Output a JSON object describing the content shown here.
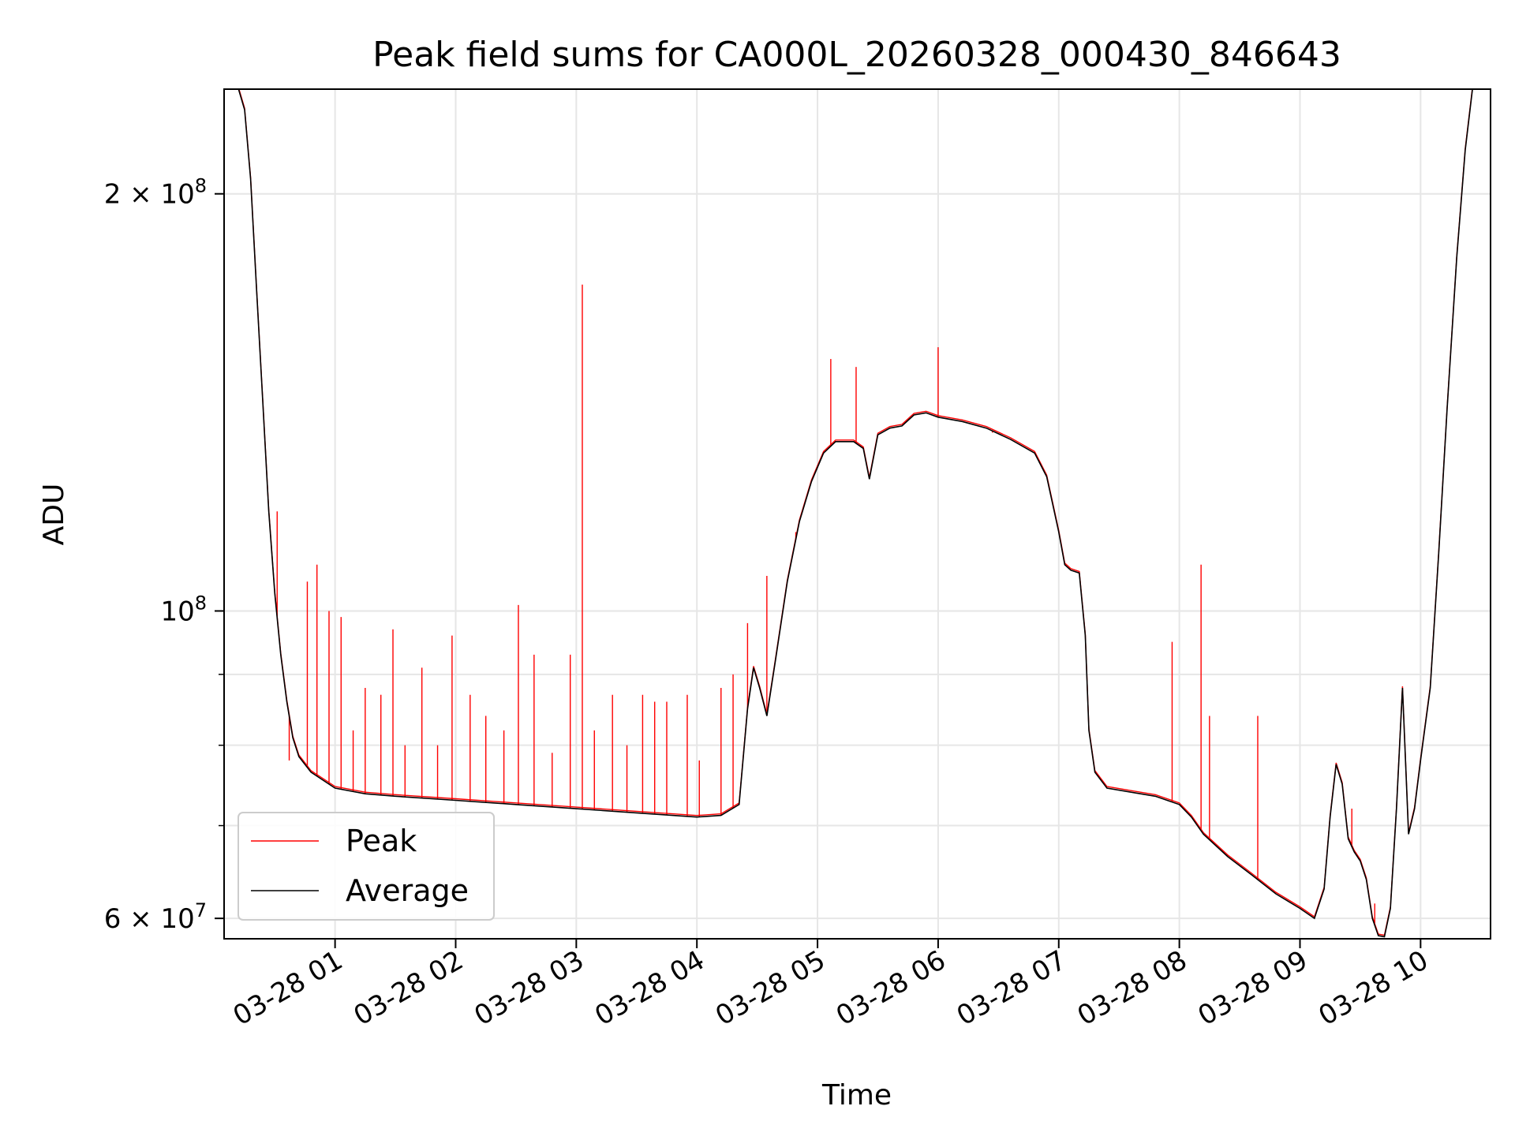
{
  "chart_data": {
    "type": "line",
    "title": "Peak field sums for CA000L_20260328_000430_846643",
    "xlabel": "Time",
    "ylabel": "ADU",
    "yscale": "log",
    "ylim": [
      58000000,
      238000000
    ],
    "xlim_hours": [
      0.08,
      10.58
    ],
    "x_unit": "hours since 03-28 00:00",
    "grid": true,
    "legend_location": "lower-left",
    "x_ticks": [
      {
        "value": 1,
        "label": "03-28 01"
      },
      {
        "value": 2,
        "label": "03-28 02"
      },
      {
        "value": 3,
        "label": "03-28 03"
      },
      {
        "value": 4,
        "label": "03-28 04"
      },
      {
        "value": 5,
        "label": "03-28 05"
      },
      {
        "value": 6,
        "label": "03-28 06"
      },
      {
        "value": 7,
        "label": "03-28 07"
      },
      {
        "value": 8,
        "label": "03-28 08"
      },
      {
        "value": 9,
        "label": "03-28 09"
      },
      {
        "value": 10,
        "label": "03-28 10"
      }
    ],
    "y_major_ticks": [
      {
        "value": 60000000,
        "mantissa": "6",
        "base": "10",
        "exp": "7"
      },
      {
        "value": 100000000,
        "mantissa": "",
        "base": "10",
        "exp": "8"
      },
      {
        "value": 200000000,
        "mantissa": "2",
        "base": "10",
        "exp": "8"
      }
    ],
    "y_minor_gridlines": [
      70000000,
      80000000,
      90000000
    ],
    "series": [
      {
        "name": "Average",
        "color": "#000000",
        "points": [
          [
            0.08,
            238000000
          ],
          [
            0.2,
            238000000
          ],
          [
            0.25,
            230000000
          ],
          [
            0.3,
            205000000
          ],
          [
            0.35,
            170000000
          ],
          [
            0.4,
            142000000
          ],
          [
            0.45,
            118000000
          ],
          [
            0.5,
            103000000
          ],
          [
            0.55,
            93000000
          ],
          [
            0.6,
            86000000
          ],
          [
            0.65,
            81000000
          ],
          [
            0.7,
            78500000
          ],
          [
            0.8,
            76500000
          ],
          [
            1.0,
            74500000
          ],
          [
            1.25,
            73800000
          ],
          [
            1.5,
            73500000
          ],
          [
            2.0,
            73000000
          ],
          [
            2.5,
            72500000
          ],
          [
            3.0,
            72000000
          ],
          [
            3.5,
            71500000
          ],
          [
            4.0,
            71000000
          ],
          [
            4.2,
            71200000
          ],
          [
            4.35,
            72500000
          ],
          [
            4.42,
            85000000
          ],
          [
            4.47,
            91000000
          ],
          [
            4.52,
            88000000
          ],
          [
            4.58,
            84000000
          ],
          [
            4.65,
            92000000
          ],
          [
            4.75,
            105000000
          ],
          [
            4.85,
            116000000
          ],
          [
            4.95,
            124000000
          ],
          [
            5.05,
            130000000
          ],
          [
            5.15,
            132500000
          ],
          [
            5.3,
            132500000
          ],
          [
            5.38,
            131000000
          ],
          [
            5.43,
            124500000
          ],
          [
            5.5,
            134000000
          ],
          [
            5.6,
            135500000
          ],
          [
            5.7,
            136000000
          ],
          [
            5.8,
            138500000
          ],
          [
            5.9,
            139000000
          ],
          [
            6.0,
            138000000
          ],
          [
            6.2,
            137000000
          ],
          [
            6.4,
            135500000
          ],
          [
            6.6,
            133000000
          ],
          [
            6.8,
            130000000
          ],
          [
            6.9,
            125000000
          ],
          [
            7.0,
            114000000
          ],
          [
            7.05,
            108000000
          ],
          [
            7.1,
            107000000
          ],
          [
            7.17,
            106500000
          ],
          [
            7.22,
            96000000
          ],
          [
            7.25,
            82000000
          ],
          [
            7.3,
            76500000
          ],
          [
            7.4,
            74500000
          ],
          [
            7.6,
            74000000
          ],
          [
            7.8,
            73500000
          ],
          [
            8.0,
            72500000
          ],
          [
            8.1,
            71000000
          ],
          [
            8.2,
            69000000
          ],
          [
            8.4,
            66500000
          ],
          [
            8.6,
            64500000
          ],
          [
            8.8,
            62500000
          ],
          [
            9.0,
            61000000
          ],
          [
            9.12,
            60000000
          ],
          [
            9.2,
            63000000
          ],
          [
            9.25,
            71000000
          ],
          [
            9.3,
            77500000
          ],
          [
            9.35,
            75000000
          ],
          [
            9.4,
            68500000
          ],
          [
            9.45,
            67000000
          ],
          [
            9.5,
            66000000
          ],
          [
            9.55,
            64000000
          ],
          [
            9.6,
            60000000
          ],
          [
            9.65,
            58300000
          ],
          [
            9.7,
            58200000
          ],
          [
            9.75,
            61000000
          ],
          [
            9.8,
            72000000
          ],
          [
            9.85,
            88000000
          ],
          [
            9.9,
            69000000
          ],
          [
            9.95,
            72000000
          ],
          [
            10.0,
            78000000
          ],
          [
            10.08,
            88000000
          ],
          [
            10.15,
            110000000
          ],
          [
            10.22,
            140000000
          ],
          [
            10.3,
            180000000
          ],
          [
            10.37,
            215000000
          ],
          [
            10.43,
            238000000
          ],
          [
            10.58,
            238000000
          ]
        ]
      },
      {
        "name": "Peak",
        "color": "#ff0000",
        "spikes": [
          [
            0.52,
            118000000
          ],
          [
            0.62,
            78000000
          ],
          [
            0.77,
            105000000
          ],
          [
            0.85,
            108000000
          ],
          [
            0.95,
            100000000
          ],
          [
            1.05,
            99000000
          ],
          [
            1.15,
            82000000
          ],
          [
            1.25,
            88000000
          ],
          [
            1.38,
            87000000
          ],
          [
            1.48,
            97000000
          ],
          [
            1.58,
            80000000
          ],
          [
            1.72,
            91000000
          ],
          [
            1.85,
            80000000
          ],
          [
            1.97,
            96000000
          ],
          [
            2.12,
            87000000
          ],
          [
            2.25,
            84000000
          ],
          [
            2.4,
            82000000
          ],
          [
            2.52,
            101000000
          ],
          [
            2.65,
            93000000
          ],
          [
            2.8,
            79000000
          ],
          [
            2.95,
            93000000
          ],
          [
            3.05,
            172000000
          ],
          [
            3.15,
            82000000
          ],
          [
            3.3,
            87000000
          ],
          [
            3.42,
            80000000
          ],
          [
            3.55,
            87000000
          ],
          [
            3.65,
            86000000
          ],
          [
            3.75,
            86000000
          ],
          [
            3.92,
            87000000
          ],
          [
            4.02,
            78000000
          ],
          [
            4.2,
            88000000
          ],
          [
            4.3,
            90000000
          ],
          [
            4.42,
            98000000
          ],
          [
            4.58,
            106000000
          ],
          [
            4.82,
            114000000
          ],
          [
            5.11,
            152000000
          ],
          [
            5.32,
            150000000
          ],
          [
            6.0,
            155000000
          ],
          [
            6.45,
            134500000
          ],
          [
            6.92,
            123000000
          ],
          [
            7.94,
            95000000
          ],
          [
            8.18,
            108000000
          ],
          [
            8.25,
            84000000
          ],
          [
            8.65,
            84000000
          ],
          [
            9.43,
            72000000
          ],
          [
            9.62,
            61500000
          ]
        ]
      }
    ]
  }
}
